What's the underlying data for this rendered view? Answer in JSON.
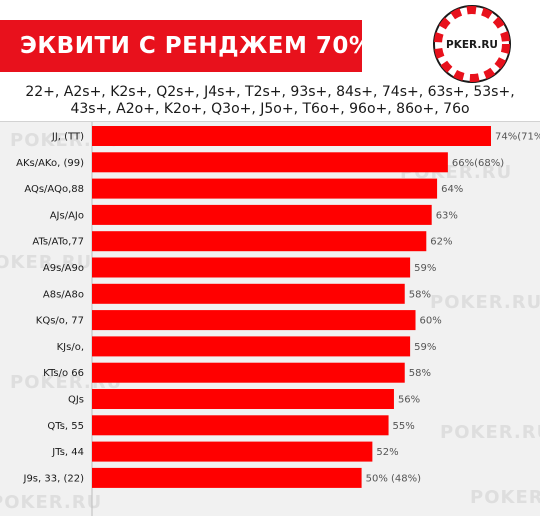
{
  "header": {
    "title": "ЭКВИТИ С РЕНДЖЕМ 70%",
    "logo_text": "PKER.RU",
    "range_line1": "22+, A2s+, K2s+, Q2s+, J4s+, T2s+, 93s+, 84s+, 74s+, 63s+, 53s+,",
    "range_line2": "43s+, A2o+, K2o+, Q3o+, J5o+, T6o+, 96o+, 86o+, 76o"
  },
  "watermark_text": "POKER.RU",
  "colors": {
    "bar": "#ff0000",
    "banner": "#e8111c",
    "text": "#1a1a1a",
    "value_text": "#555555"
  },
  "chart_data": {
    "type": "bar",
    "orientation": "horizontal",
    "title": "ЭКВИТИ С РЕНДЖЕМ 70%",
    "xlim": [
      0,
      74
    ],
    "grid": false,
    "categories": [
      "JJ, (TT)",
      "AKs/AKo, (99)",
      "AQs/AQo,88",
      "AJs/AJo",
      "ATs/ATo,77",
      "A9s/A9o",
      "A8s/A8o",
      "KQs/o, 77",
      "KJs/o,",
      "KTs/o 66",
      "QJs",
      "QTs, 55",
      "JTs, 44",
      "J9s, 33, (22)"
    ],
    "values": [
      74,
      66,
      64,
      63,
      62,
      59,
      58,
      60,
      59,
      58,
      56,
      55,
      52,
      50
    ],
    "labels": [
      "74%(71%)",
      "66%(68%)",
      "64%",
      "63%",
      "62%",
      "59%",
      "58%",
      "60%",
      "59%",
      "58%",
      "56%",
      "55%",
      "52%",
      "50% (48%)"
    ]
  }
}
